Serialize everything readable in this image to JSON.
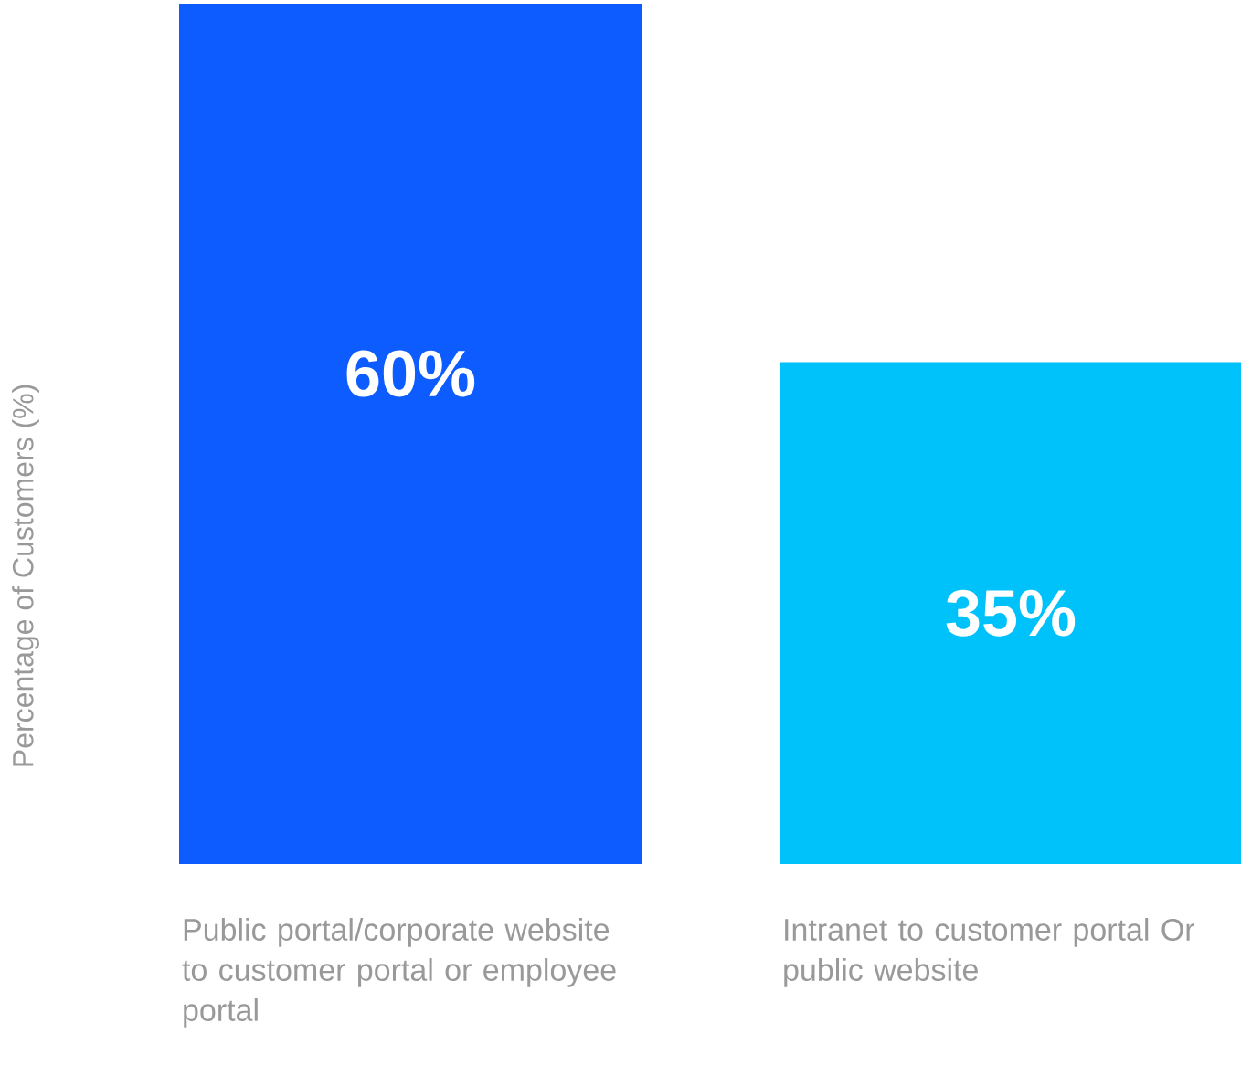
{
  "chart_data": {
    "type": "bar",
    "ylabel": "Percentage of Customers (%)",
    "categories": [
      "Public portal/corporate website to customer portal or employee portal",
      "Intranet to customer portal Or public website"
    ],
    "values": [
      60,
      35
    ],
    "value_labels": [
      "60%",
      "35%"
    ],
    "colors": [
      "#0d5cff",
      "#00c2fa"
    ]
  }
}
